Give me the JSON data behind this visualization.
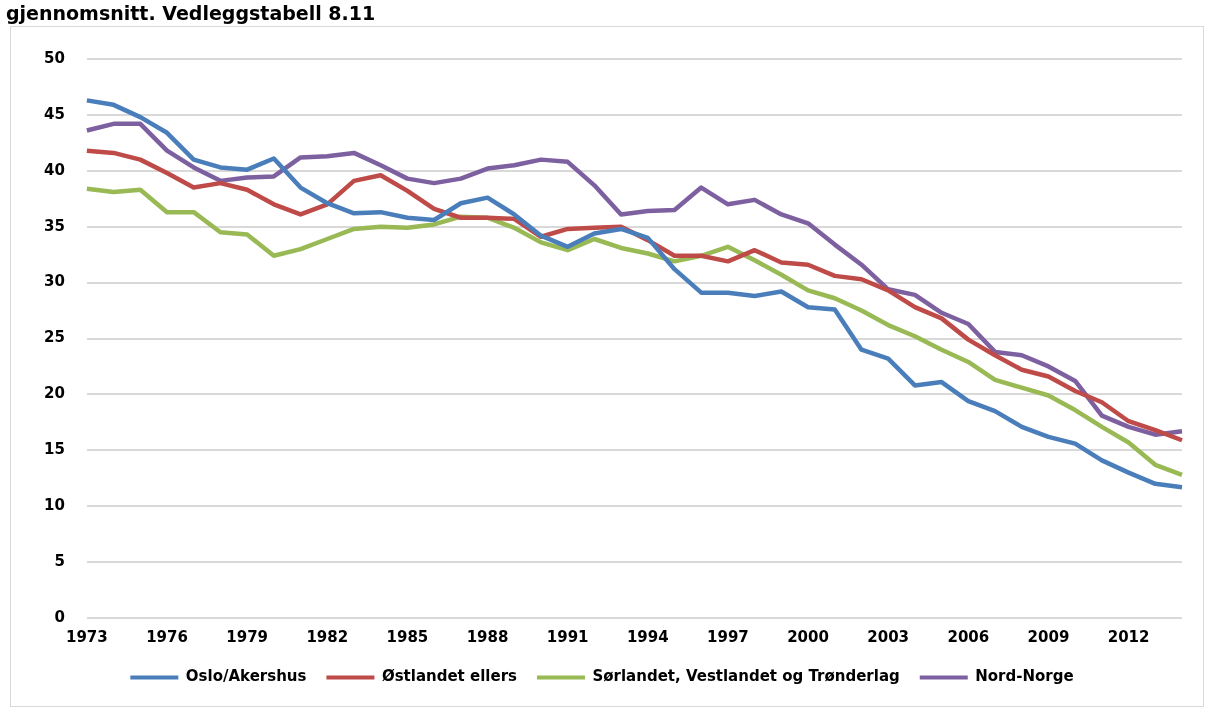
{
  "chart_data": {
    "type": "line",
    "title": "gjennomsnitt. Vedleggstabell 8.11",
    "categories": [
      "1973",
      null,
      null,
      "1976",
      null,
      null,
      "1979",
      null,
      null,
      "1982",
      null,
      null,
      "1985",
      null,
      null,
      "1988",
      null,
      null,
      "1991",
      null,
      null,
      "1994",
      null,
      null,
      "1997",
      null,
      null,
      "2000",
      null,
      null,
      "2003",
      null,
      null,
      "2006",
      null,
      null,
      "2009",
      null,
      null,
      "2012",
      null,
      null
    ],
    "series": [
      {
        "name": "Oslo/Akershus",
        "color": "#4a7ebb",
        "values": [
          46.3,
          45.9,
          44.8,
          43.4,
          41.0,
          40.3,
          40.1,
          41.1,
          38.5,
          37.1,
          36.2,
          36.3,
          35.8,
          35.6,
          37.1,
          37.6,
          36.1,
          34.2,
          33.2,
          34.4,
          34.8,
          34.0,
          31.2,
          29.1,
          29.1,
          28.8,
          29.2,
          27.8,
          27.6,
          24.0,
          23.2,
          20.8,
          21.1,
          19.4,
          18.5,
          17.1,
          16.2,
          15.6,
          14.1,
          13.0,
          12.0,
          11.7
        ]
      },
      {
        "name": "Østlandet ellers",
        "color": "#be4b48",
        "values": [
          41.8,
          41.6,
          41.0,
          39.8,
          38.5,
          38.9,
          38.3,
          37.0,
          36.1,
          37.0,
          39.1,
          39.6,
          38.2,
          36.6,
          35.8,
          35.8,
          35.7,
          34.1,
          34.8,
          34.9,
          35.0,
          33.8,
          32.4,
          32.4,
          31.9,
          32.9,
          31.8,
          31.6,
          30.6,
          30.3,
          29.3,
          27.8,
          26.8,
          24.9,
          23.5,
          22.2,
          21.6,
          20.3,
          19.3,
          17.6,
          16.8,
          15.9
        ]
      },
      {
        "name": "Sørlandet, Vestlandet og Trønderlag",
        "color": "#98b954",
        "values": [
          38.4,
          38.1,
          38.3,
          36.3,
          36.3,
          34.5,
          34.3,
          32.4,
          33.0,
          33.9,
          34.8,
          35.0,
          34.9,
          35.2,
          35.9,
          35.8,
          34.9,
          33.6,
          32.9,
          33.9,
          33.1,
          32.6,
          31.9,
          32.4,
          33.2,
          32.0,
          30.7,
          29.3,
          28.6,
          27.5,
          26.2,
          25.2,
          24.0,
          22.9,
          21.3,
          20.6,
          19.9,
          18.6,
          17.1,
          15.7,
          13.7,
          12.8
        ]
      },
      {
        "name": "Nord-Norge",
        "color": "#7d60a0",
        "values": [
          43.6,
          44.2,
          44.2,
          41.8,
          40.3,
          39.1,
          39.4,
          39.5,
          41.2,
          41.3,
          41.6,
          40.5,
          39.3,
          38.9,
          39.3,
          40.2,
          40.5,
          41.0,
          40.8,
          38.7,
          36.1,
          36.4,
          36.5,
          38.5,
          37.0,
          37.4,
          36.1,
          35.3,
          33.4,
          31.6,
          29.4,
          28.9,
          27.3,
          26.3,
          23.8,
          23.5,
          22.5,
          21.2,
          18.1,
          17.1,
          16.4,
          16.7
        ]
      }
    ],
    "ylim": [
      0,
      50
    ],
    "yticks": [
      0,
      5,
      10,
      15,
      20,
      25,
      30,
      35,
      40,
      45,
      50
    ],
    "grid": "y",
    "legend": "bottom",
    "marker": "none",
    "line_style": "solid"
  }
}
